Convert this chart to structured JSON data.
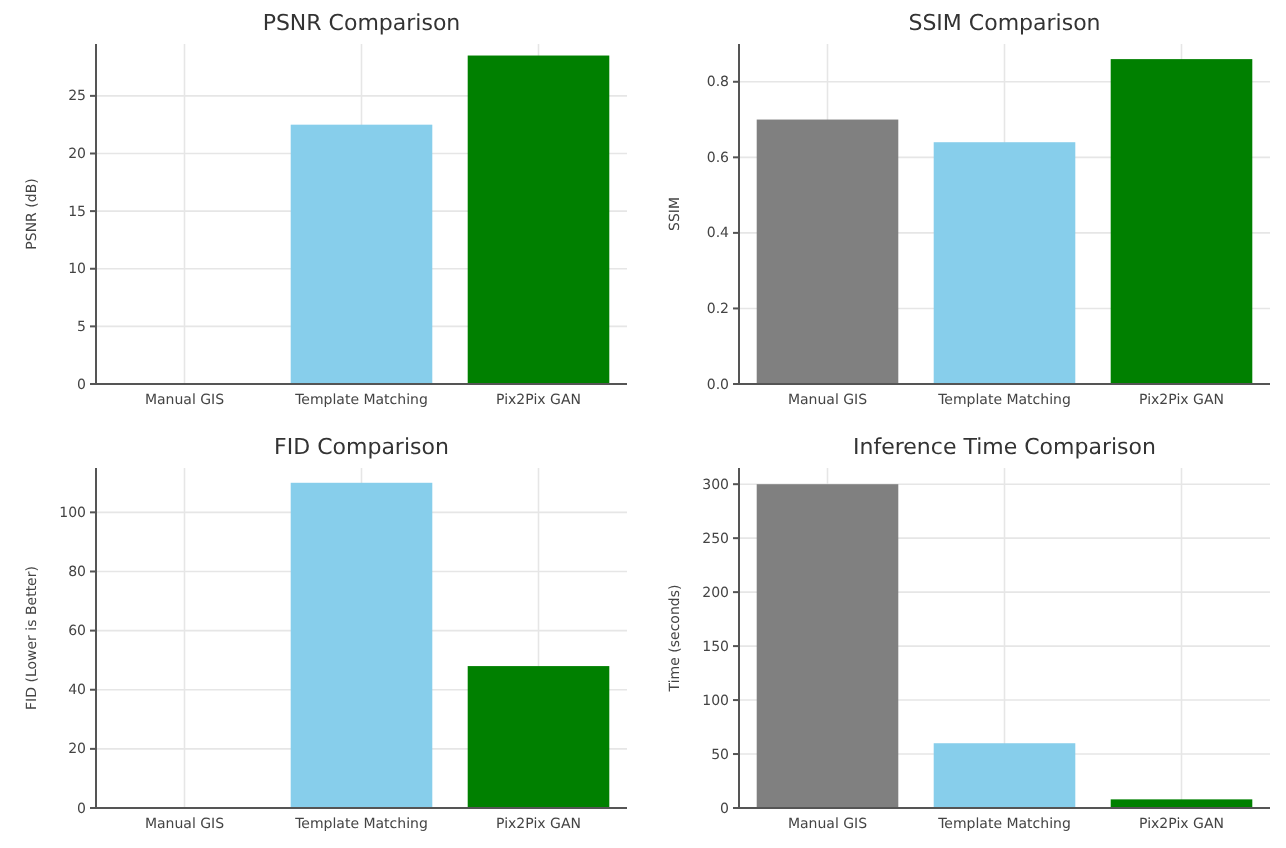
{
  "chart_data": [
    {
      "type": "bar",
      "title": "PSNR Comparison",
      "ylabel": "PSNR (dB)",
      "categories": [
        "Manual GIS",
        "Template Matching",
        "Pix2Pix GAN"
      ],
      "values": [
        null,
        22.5,
        28.5
      ],
      "colors": [
        null,
        "#87ceeb",
        "#008000"
      ],
      "ylim": [
        0,
        29.5
      ],
      "yticks": [
        0,
        5,
        10,
        15,
        20,
        25
      ],
      "grid": true
    },
    {
      "type": "bar",
      "title": "SSIM Comparison",
      "ylabel": "SSIM",
      "categories": [
        "Manual GIS",
        "Template Matching",
        "Pix2Pix GAN"
      ],
      "values": [
        0.7,
        0.64,
        0.86
      ],
      "colors": [
        "#808080",
        "#87ceeb",
        "#008000"
      ],
      "ylim": [
        0,
        0.9
      ],
      "yticks": [
        {
          "value": 0,
          "label": "0.0"
        },
        {
          "value": 0.2,
          "label": "0.2"
        },
        {
          "value": 0.4,
          "label": "0.4"
        },
        {
          "value": 0.6,
          "label": "0.6"
        },
        {
          "value": 0.8,
          "label": "0.8"
        }
      ],
      "grid": true
    },
    {
      "type": "bar",
      "title": "FID Comparison",
      "ylabel": "FID (Lower is Better)",
      "categories": [
        "Manual GIS",
        "Template Matching",
        "Pix2Pix GAN"
      ],
      "values": [
        null,
        110,
        48
      ],
      "colors": [
        null,
        "#87ceeb",
        "#008000"
      ],
      "ylim": [
        0,
        115
      ],
      "yticks": [
        0,
        20,
        40,
        60,
        80,
        100
      ],
      "grid": true
    },
    {
      "type": "bar",
      "title": "Inference Time Comparison",
      "ylabel": "Time (seconds)",
      "categories": [
        "Manual GIS",
        "Template Matching",
        "Pix2Pix GAN"
      ],
      "values": [
        300,
        60,
        8
      ],
      "colors": [
        "#808080",
        "#87ceeb",
        "#008000"
      ],
      "ylim": [
        0,
        315
      ],
      "yticks": [
        0,
        50,
        100,
        150,
        200,
        250,
        300
      ],
      "grid": true
    }
  ]
}
